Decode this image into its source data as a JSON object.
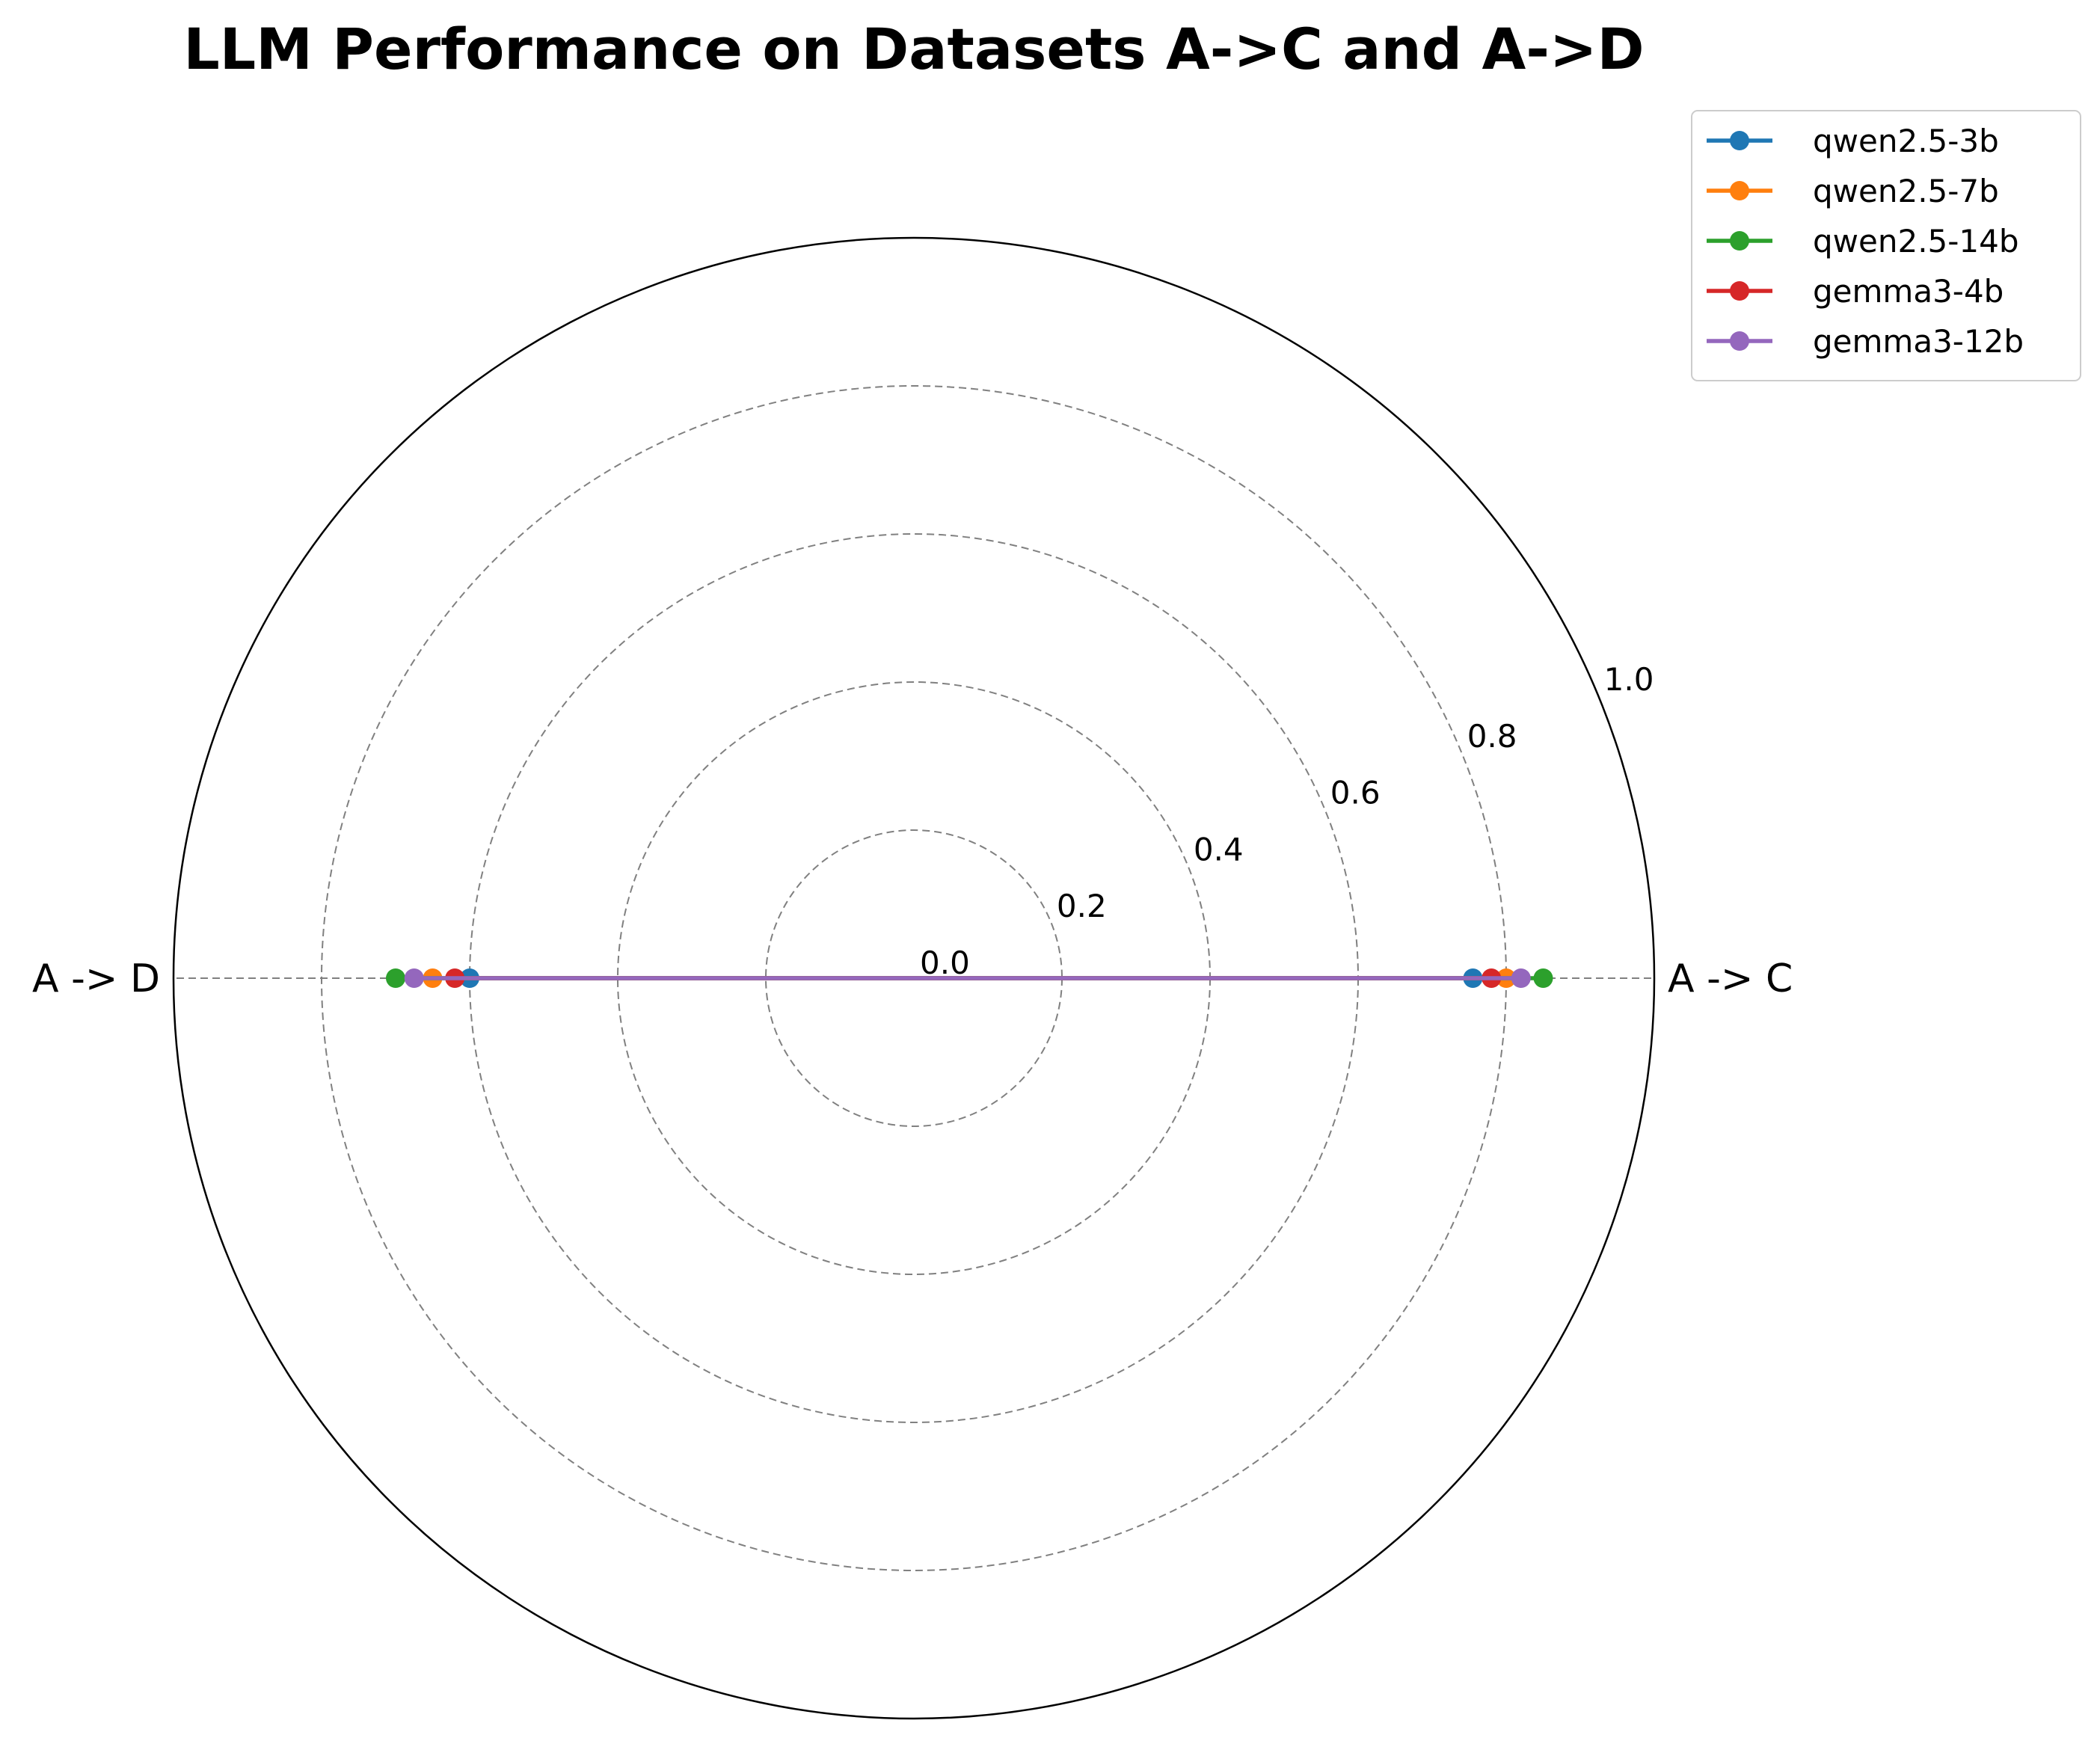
{
  "chart_data": {
    "type": "radar",
    "title": "LLM Performance on Datasets A->C and A->D",
    "categories": [
      "A -> C",
      "A -> D"
    ],
    "rlim": [
      0,
      1.0
    ],
    "rticks": [
      "0.0",
      "0.2",
      "0.4",
      "0.6",
      "0.8",
      "1.0"
    ],
    "rtick_values": [
      0,
      0.2,
      0.4,
      0.6,
      0.8,
      1.0
    ],
    "grid": true,
    "legend_position": "top-right",
    "series": [
      {
        "name": "qwen2.5-3b",
        "color": "#1f77b4",
        "values": [
          0.755,
          0.6
        ]
      },
      {
        "name": "qwen2.5-7b",
        "color": "#ff7f0e",
        "values": [
          0.8,
          0.65
        ]
      },
      {
        "name": "qwen2.5-14b",
        "color": "#2ca02c",
        "values": [
          0.85,
          0.7
        ]
      },
      {
        "name": "gemma3-4b",
        "color": "#d62728",
        "values": [
          0.78,
          0.62
        ]
      },
      {
        "name": "gemma3-12b",
        "color": "#9467bd",
        "values": [
          0.82,
          0.675
        ]
      }
    ]
  }
}
